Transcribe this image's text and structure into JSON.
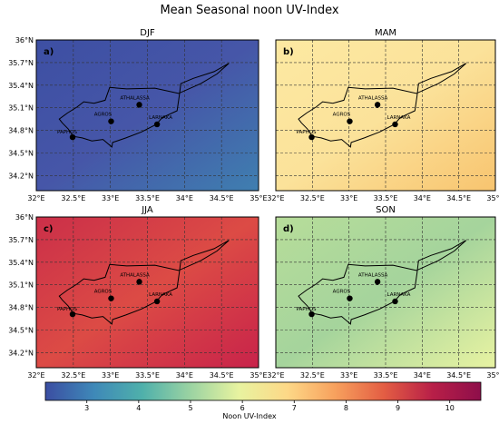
{
  "figure": {
    "title": "Mean Seasonal noon UV-Index",
    "colorbar_label": "Noon UV-Index"
  },
  "panels": [
    {
      "letter": "a)",
      "season": "DJF",
      "uv_level": 3.0,
      "tl": "#3d4fa3",
      "tr": "#4656a8",
      "bl": "#3f7fb0",
      "br": "#476fae"
    },
    {
      "letter": "b)",
      "season": "MAM",
      "uv_level": 7.0,
      "tl": "#fde9a2",
      "tr": "#fbe29a",
      "bl": "#f8c46f",
      "br": "#fbd586"
    },
    {
      "letter": "c)",
      "season": "JJA",
      "uv_level": 9.3,
      "tl": "#cb2f49",
      "tr": "#dc4b45",
      "bl": "#c8234a",
      "br": "#d83c46"
    },
    {
      "letter": "d)",
      "season": "SON",
      "uv_level": 6.0,
      "tl": "#b7dd9a",
      "tr": "#a5d49c",
      "bl": "#e8f3a2",
      "br": "#c9e69d"
    }
  ],
  "axes": {
    "xticks": [
      "32°E",
      "32.5°E",
      "33°E",
      "33.5°E",
      "34°E",
      "34.5°E",
      "35°E"
    ],
    "yticks": [
      "36°N",
      "35.7°N",
      "35.4°N",
      "35.1°N",
      "34.8°N",
      "34.5°N",
      "34.2°N"
    ],
    "xlim": [
      32,
      35
    ],
    "ylim": [
      34,
      36
    ],
    "grid": "dashed"
  },
  "stations": [
    {
      "name": "ATHALASSA",
      "lon": 33.39,
      "lat": 35.14
    },
    {
      "name": "AGROS",
      "lon": 33.01,
      "lat": 34.92
    },
    {
      "name": "LARNAKA",
      "lon": 33.63,
      "lat": 34.88
    },
    {
      "name": "PAPHOS",
      "lon": 32.49,
      "lat": 34.71
    }
  ],
  "colorbar": {
    "min": 2.2,
    "max": 10.6,
    "ticks": [
      "3",
      "4",
      "5",
      "6",
      "7",
      "8",
      "9",
      "10"
    ],
    "colors": [
      "#3b4ea2",
      "#3e88b8",
      "#4fb0ab",
      "#9bd3a2",
      "#e8f3a0",
      "#fdd887",
      "#f7a05d",
      "#e35d43",
      "#b81f48",
      "#8e0e4a"
    ]
  }
}
